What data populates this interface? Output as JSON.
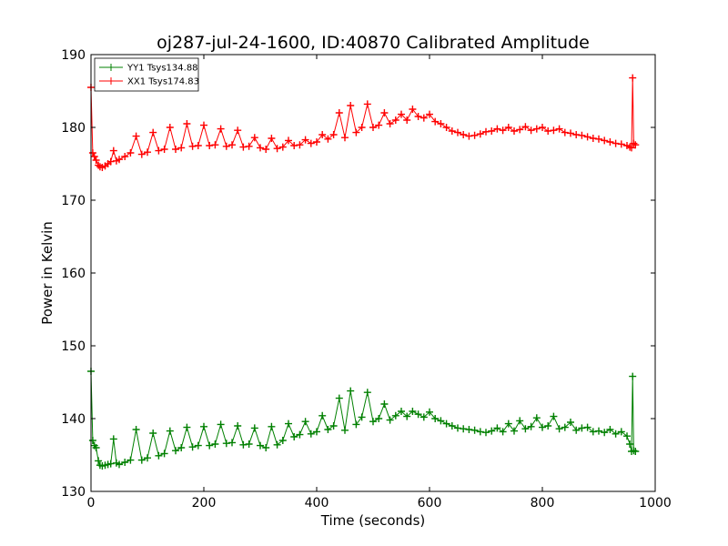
{
  "chart_data": {
    "type": "line",
    "title": "oj287-jul-24-1600, ID:40870 Calibrated Amplitude",
    "xlabel": "Time (seconds)",
    "ylabel": "Power in Kelvin",
    "xlim": [
      0,
      1000
    ],
    "ylim": [
      130,
      190
    ],
    "x_ticks": [
      0,
      200,
      400,
      600,
      800,
      1000
    ],
    "y_ticks": [
      130,
      140,
      150,
      160,
      170,
      180,
      190
    ],
    "legend_position": "top-left",
    "marker": "+",
    "series": [
      {
        "name": "YY1 Tsys134.88",
        "color": "#008000",
        "x": [
          0,
          3,
          6,
          9,
          13,
          16,
          20,
          25,
          30,
          35,
          40,
          45,
          50,
          60,
          70,
          80,
          90,
          100,
          110,
          120,
          130,
          140,
          150,
          160,
          170,
          180,
          190,
          200,
          210,
          220,
          230,
          240,
          250,
          260,
          270,
          280,
          290,
          300,
          310,
          320,
          330,
          340,
          350,
          360,
          370,
          380,
          390,
          400,
          410,
          420,
          430,
          440,
          450,
          460,
          470,
          480,
          490,
          500,
          510,
          520,
          530,
          540,
          550,
          560,
          570,
          580,
          590,
          600,
          610,
          620,
          630,
          640,
          650,
          660,
          670,
          680,
          690,
          700,
          710,
          720,
          730,
          740,
          750,
          760,
          770,
          780,
          790,
          800,
          810,
          820,
          830,
          840,
          850,
          860,
          870,
          880,
          890,
          900,
          910,
          920,
          930,
          940,
          950,
          955,
          958,
          960,
          962,
          965
        ],
        "y": [
          146.5,
          137.0,
          136.3,
          136.0,
          134.2,
          133.6,
          133.5,
          133.6,
          133.7,
          133.8,
          137.2,
          133.9,
          133.7,
          134.0,
          134.3,
          138.5,
          134.3,
          134.6,
          138.0,
          134.9,
          135.2,
          138.3,
          135.6,
          136.0,
          138.8,
          136.1,
          136.3,
          138.9,
          136.3,
          136.5,
          139.2,
          136.6,
          136.7,
          139.0,
          136.4,
          136.5,
          138.7,
          136.3,
          136.0,
          138.9,
          136.4,
          137.0,
          139.3,
          137.5,
          137.8,
          139.6,
          137.9,
          138.2,
          140.4,
          138.5,
          139.0,
          142.8,
          138.4,
          143.8,
          139.2,
          140.2,
          143.6,
          139.6,
          140.0,
          142.0,
          139.8,
          140.4,
          141.0,
          140.3,
          141.0,
          140.6,
          140.2,
          140.9,
          140.0,
          139.7,
          139.3,
          139.0,
          138.7,
          138.6,
          138.5,
          138.4,
          138.2,
          138.1,
          138.3,
          138.7,
          138.2,
          139.3,
          138.3,
          139.7,
          138.6,
          138.9,
          140.1,
          138.8,
          139.0,
          140.3,
          138.6,
          138.8,
          139.5,
          138.4,
          138.7,
          138.8,
          138.2,
          138.3,
          138.1,
          138.5,
          137.9,
          138.2,
          137.6,
          136.5,
          135.5,
          145.8,
          135.6,
          135.5
        ]
      },
      {
        "name": "XX1 Tsys174.83",
        "color": "#ff0000",
        "x": [
          0,
          3,
          6,
          9,
          13,
          16,
          20,
          25,
          30,
          35,
          40,
          45,
          50,
          60,
          70,
          80,
          90,
          100,
          110,
          120,
          130,
          140,
          150,
          160,
          170,
          180,
          190,
          200,
          210,
          220,
          230,
          240,
          250,
          260,
          270,
          280,
          290,
          300,
          310,
          320,
          330,
          340,
          350,
          360,
          370,
          380,
          390,
          400,
          410,
          420,
          430,
          440,
          450,
          460,
          470,
          480,
          490,
          500,
          510,
          520,
          530,
          540,
          550,
          560,
          570,
          580,
          590,
          600,
          610,
          620,
          630,
          640,
          650,
          660,
          670,
          680,
          690,
          700,
          710,
          720,
          730,
          740,
          750,
          760,
          770,
          780,
          790,
          800,
          810,
          820,
          830,
          840,
          850,
          860,
          870,
          880,
          890,
          900,
          910,
          920,
          930,
          940,
          950,
          955,
          958,
          960,
          962,
          965
        ],
        "y": [
          185.5,
          176.5,
          176.0,
          175.5,
          174.8,
          174.6,
          174.5,
          174.7,
          175.0,
          175.3,
          176.8,
          175.4,
          175.6,
          176.0,
          176.5,
          178.8,
          176.3,
          176.6,
          179.3,
          176.8,
          177.0,
          180.0,
          177.0,
          177.2,
          180.5,
          177.4,
          177.5,
          180.3,
          177.5,
          177.6,
          179.8,
          177.4,
          177.6,
          179.6,
          177.3,
          177.4,
          178.6,
          177.2,
          177.0,
          178.5,
          177.1,
          177.3,
          178.2,
          177.5,
          177.6,
          178.3,
          177.8,
          178.0,
          179.0,
          178.4,
          179.0,
          182.0,
          178.6,
          183.0,
          179.3,
          180.0,
          183.2,
          180.0,
          180.3,
          182.0,
          180.5,
          181.0,
          181.8,
          181.0,
          182.5,
          181.5,
          181.3,
          181.8,
          180.8,
          180.5,
          180.0,
          179.5,
          179.3,
          179.0,
          178.8,
          178.9,
          179.1,
          179.4,
          179.5,
          179.8,
          179.6,
          180.0,
          179.5,
          179.7,
          180.1,
          179.6,
          179.8,
          180.0,
          179.5,
          179.6,
          179.8,
          179.3,
          179.2,
          179.0,
          178.9,
          178.7,
          178.5,
          178.4,
          178.2,
          178.0,
          177.8,
          177.7,
          177.5,
          177.3,
          177.2,
          186.8,
          177.8,
          177.6
        ]
      }
    ]
  }
}
